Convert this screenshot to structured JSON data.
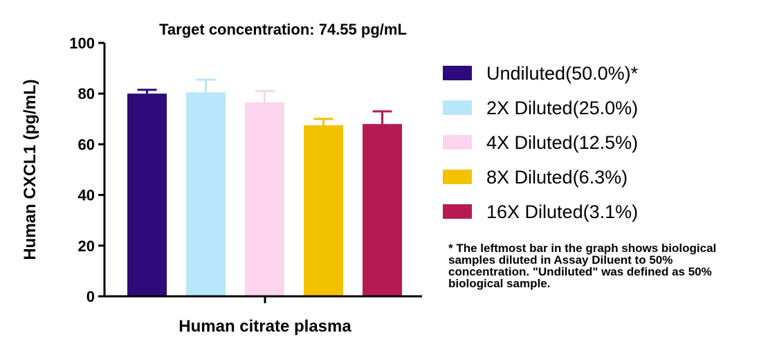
{
  "chart_data": {
    "type": "bar",
    "title": "Target concentration: 74.55 pg/mL",
    "xlabel": "Human citrate plasma",
    "ylabel": "Human CXCL1 (pg/mL)",
    "ylim": [
      0,
      100
    ],
    "yticks": [
      "0",
      "20",
      "40",
      "60",
      "80",
      "100"
    ],
    "legend_position": "right",
    "series": [
      {
        "name": "Undiluted(50.0%)*",
        "value": 80.0,
        "error": 1.5,
        "color": "#2e0a7a"
      },
      {
        "name": "2X Diluted(25.0%)",
        "value": 80.5,
        "error": 5.0,
        "color": "#b8e6fa"
      },
      {
        "name": "4X Diluted(12.5%)",
        "value": 76.5,
        "error": 4.5,
        "color": "#fcd4ee"
      },
      {
        "name": "8X Diluted(6.3%)",
        "value": 67.5,
        "error": 2.5,
        "color": "#f2c200"
      },
      {
        "name": "16X Diluted(3.1%)",
        "value": 68.0,
        "error": 5.0,
        "color": "#b71a52"
      }
    ],
    "footnote": "* The leftmost bar in the graph shows biological samples diluted in Assay Diluent to 50% concentration. \"Undiluted\" was defined as 50% biological sample."
  }
}
